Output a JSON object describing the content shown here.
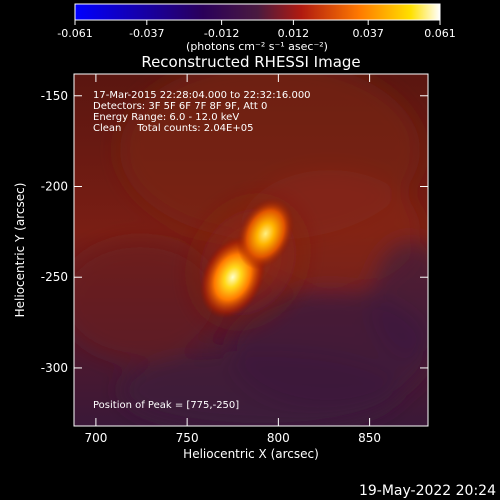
{
  "colorbar": {
    "ticks": [
      "-0.061",
      "-0.037",
      "-0.012",
      "0.012",
      "0.037",
      "0.061"
    ],
    "min": -0.061,
    "max": 0.061,
    "unit_label": "(photons cm⁻² s⁻¹ asec⁻²)"
  },
  "chart_data": {
    "type": "heatmap",
    "title": "Reconstructed RHESSI Image",
    "xlabel": "Heliocentric X (arcsec)",
    "ylabel": "Heliocentric Y (arcsec)",
    "xlim": [
      688,
      882
    ],
    "ylim": [
      -332,
      -138
    ],
    "xticks": [
      700,
      750,
      800,
      850
    ],
    "yticks": [
      -150,
      -200,
      -250,
      -300
    ],
    "colormap": "hot (red-yellow-white over black/blue)",
    "sources": [
      {
        "x": 775,
        "y": -250,
        "peak": 0.061
      },
      {
        "x": 793,
        "y": -226,
        "peak": 0.048
      }
    ],
    "annotations": [
      "17-Mar-2015 22:28:04.000 to 22:32:16.000",
      "Detectors: 3F 5F 6F 7F 8F 9F, Att 0",
      "Energy Range: 6.0 - 12.0 keV",
      "Clean     Total counts: 2.04E+05",
      "Position of Peak = [775,-250]"
    ]
  },
  "footer_date": "19-May-2022 20:24"
}
